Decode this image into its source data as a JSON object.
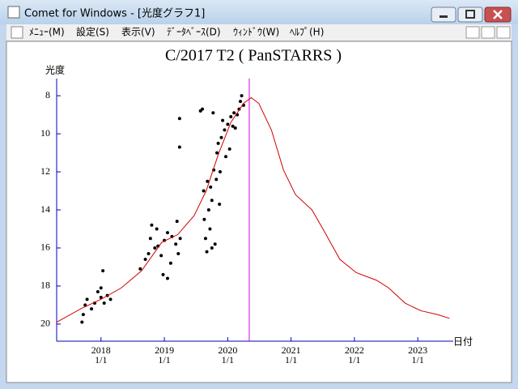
{
  "window": {
    "title": "Comet for Windows - [光度グラフ1]",
    "menu": [
      "ﾒﾆｭｰ(M)",
      "設定(S)",
      "表示(V)",
      "ﾃﾞｰﾀﾍﾞｰｽ(D)",
      "ｳｨﾝﾄﾞｳ(W)",
      "ﾍﾙﾌﾟ(H)"
    ]
  },
  "chart_data": {
    "type": "scatter",
    "title": "C/2017 T2 ( PanSTARRS )",
    "y_label": "光度",
    "x_label": "日付",
    "xlim": [
      2017.3,
      2023.56
    ],
    "ylim": [
      20.9,
      7.1
    ],
    "y_inverted": true,
    "xticks": [
      {
        "value": 2018,
        "label": "2018"
      },
      {
        "value": 2019,
        "label": "2019"
      },
      {
        "value": 2020,
        "label": "2020"
      },
      {
        "value": 2021,
        "label": "2021"
      },
      {
        "value": 2022,
        "label": "2022"
      },
      {
        "value": 2023,
        "label": "2023"
      }
    ],
    "xtick_sublabel": "1/1",
    "yticks": [
      8,
      10,
      12,
      14,
      16,
      18,
      20
    ],
    "axis_color": "#0000c0",
    "vline": {
      "x": 2020.34,
      "color": "#e000e0"
    },
    "series": [
      {
        "type": "scatter",
        "color": "#000000",
        "x": [
          2017.7,
          2017.72,
          2017.75,
          2017.78,
          2017.85,
          2017.9,
          2017.95,
          2018.0,
          2018.05,
          2018.1,
          2018.15,
          2018.0,
          2018.03,
          2018.62,
          2018.7,
          2018.75,
          2018.78,
          2018.8,
          2018.85,
          2018.9,
          2018.95,
          2018.98,
          2019.0,
          2019.05,
          2019.1,
          2019.12,
          2019.18,
          2019.2,
          2019.22,
          2019.25,
          2019.05,
          2018.88,
          2019.24,
          2019.24,
          2019.57,
          2019.6,
          2019.62,
          2019.63,
          2019.65,
          2019.67,
          2019.7,
          2019.72,
          2019.73,
          2019.75,
          2019.77,
          2019.78,
          2019.8,
          2019.82,
          2019.83,
          2019.85,
          2019.87,
          2019.88,
          2019.9,
          2019.92,
          2019.95,
          2019.97,
          2020.0,
          2020.03,
          2020.05,
          2020.08,
          2020.1,
          2020.12,
          2020.15,
          2020.18,
          2020.2,
          2020.22,
          2020.25,
          2019.75,
          2019.68
        ],
        "values": [
          19.9,
          19.5,
          19.0,
          18.7,
          19.2,
          18.9,
          18.3,
          18.6,
          18.9,
          18.5,
          18.7,
          18.1,
          17.2,
          17.1,
          16.6,
          16.3,
          15.5,
          14.8,
          16.0,
          15.9,
          16.4,
          17.4,
          15.6,
          15.2,
          16.8,
          15.4,
          15.8,
          14.6,
          16.3,
          15.5,
          17.6,
          15.0,
          9.2,
          10.7,
          8.8,
          8.7,
          13.0,
          14.5,
          15.5,
          16.2,
          14.0,
          15.0,
          12.8,
          13.5,
          8.9,
          11.9,
          15.8,
          12.4,
          11.0,
          10.5,
          13.7,
          12.0,
          10.2,
          9.3,
          9.8,
          11.2,
          9.5,
          10.8,
          9.1,
          9.6,
          8.9,
          9.7,
          9.0,
          8.7,
          8.3,
          8.0,
          8.5,
          16.0,
          12.5
        ]
      },
      {
        "type": "line",
        "color": "#d00000",
        "x": [
          2017.3,
          2017.68,
          2018.0,
          2018.32,
          2018.64,
          2018.96,
          2019.21,
          2019.47,
          2019.66,
          2019.85,
          2020.05,
          2020.25,
          2020.37,
          2020.49,
          2020.69,
          2020.88,
          2021.07,
          2021.33,
          2021.52,
          2021.77,
          2022.03,
          2022.35,
          2022.54,
          2022.8,
          2023.05,
          2023.31,
          2023.5
        ],
        "values": [
          19.9,
          19.2,
          18.7,
          18.1,
          17.2,
          15.7,
          15.3,
          14.3,
          13.0,
          11.1,
          9.4,
          8.4,
          8.1,
          8.4,
          9.8,
          11.9,
          13.2,
          14.0,
          15.1,
          16.6,
          17.3,
          17.7,
          18.1,
          18.9,
          19.3,
          19.5,
          19.7
        ]
      }
    ]
  }
}
